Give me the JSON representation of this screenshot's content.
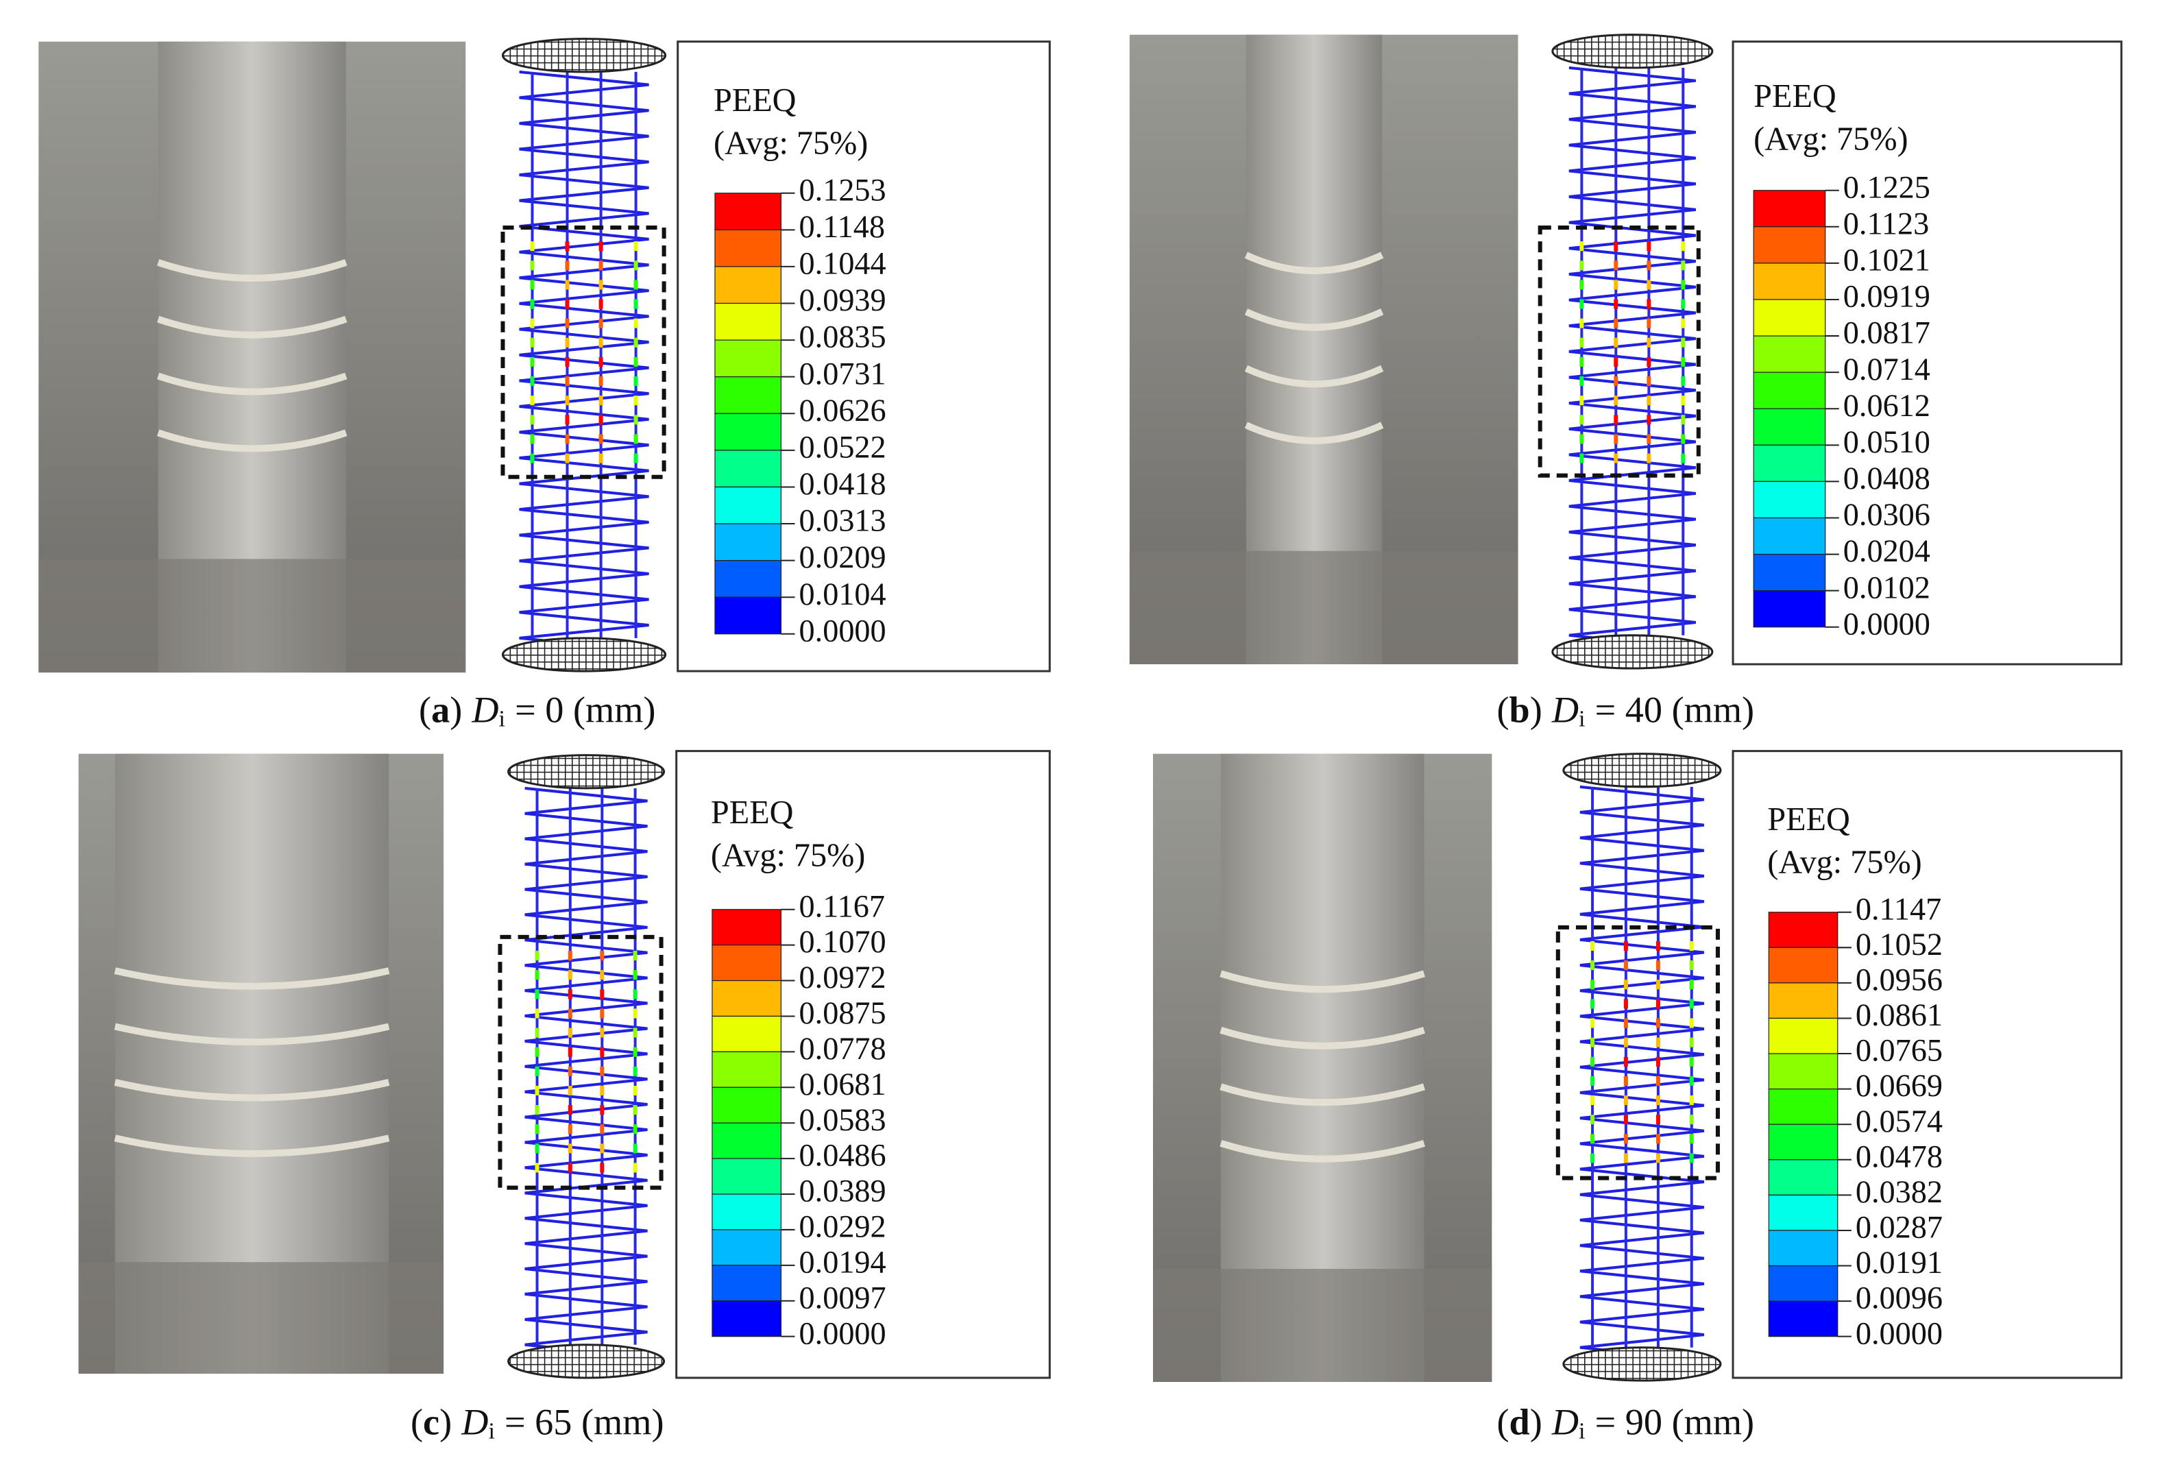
{
  "panels": [
    {
      "caption": {
        "open": "(",
        "letter": "a",
        "close": ")",
        "var": "D",
        "sub": "i",
        "rest": "= 0 (mm)"
      },
      "legend": {
        "title": "PEEQ",
        "subtitle": "(Avg: 75%)",
        "levels": [
          "0.1253",
          "0.1148",
          "0.1044",
          "0.0939",
          "0.0835",
          "0.0731",
          "0.0626",
          "0.0522",
          "0.0418",
          "0.0313",
          "0.0209",
          "0.0104",
          "0.0000"
        ]
      }
    },
    {
      "caption": {
        "open": "(",
        "letter": "b",
        "close": ")",
        "var": "D",
        "sub": "i",
        "rest": "= 40 (mm)"
      },
      "legend": {
        "title": "PEEQ",
        "subtitle": "(Avg: 75%)",
        "levels": [
          "0.1225",
          "0.1123",
          "0.1021",
          "0.0919",
          "0.0817",
          "0.0714",
          "0.0612",
          "0.0510",
          "0.0408",
          "0.0306",
          "0.0204",
          "0.0102",
          "0.0000"
        ]
      }
    },
    {
      "caption": {
        "open": "(",
        "letter": "c",
        "close": ")",
        "var": "D",
        "sub": "i",
        "rest": "= 65 (mm)"
      },
      "legend": {
        "title": "PEEQ",
        "subtitle": "(Avg: 75%)",
        "levels": [
          "0.1167",
          "0.1070",
          "0.0972",
          "0.0875",
          "0.0778",
          "0.0681",
          "0.0583",
          "0.0486",
          "0.0389",
          "0.0292",
          "0.0194",
          "0.0097",
          "0.0000"
        ]
      }
    },
    {
      "caption": {
        "open": "(",
        "letter": "d",
        "close": ")",
        "var": "D",
        "sub": "i",
        "rest": "= 90 (mm)"
      },
      "legend": {
        "title": "PEEQ",
        "subtitle": "(Avg: 75%)",
        "levels": [
          "0.1147",
          "0.1052",
          "0.0956",
          "0.0861",
          "0.0765",
          "0.0669",
          "0.0574",
          "0.0478",
          "0.0382",
          "0.0287",
          "0.0191",
          "0.0096",
          "0.0000"
        ]
      }
    }
  ]
}
